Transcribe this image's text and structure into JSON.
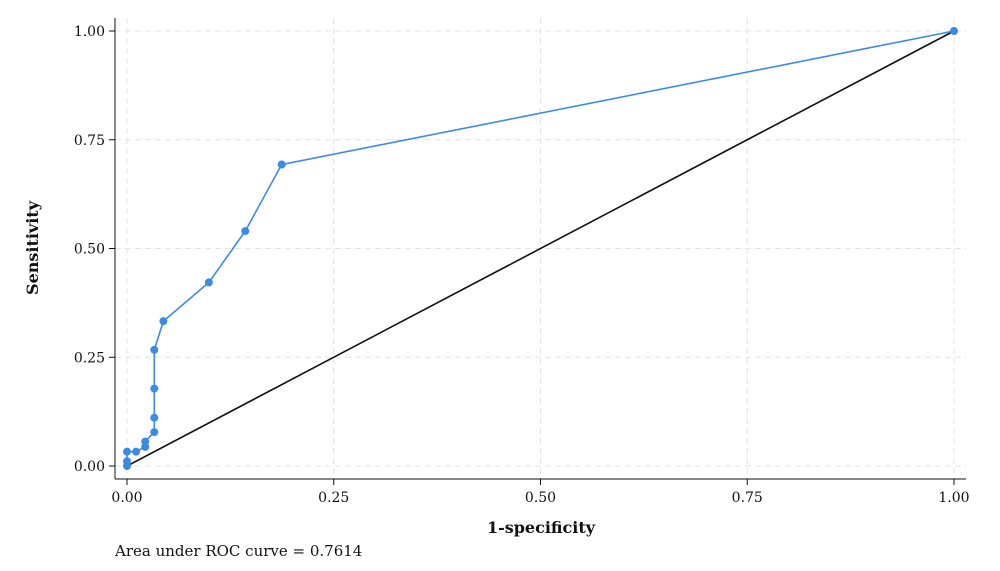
{
  "chart_data": {
    "type": "line",
    "title": "",
    "xlabel": "1-specificity",
    "ylabel": "Sensitivity",
    "xlim": [
      0,
      1
    ],
    "ylim": [
      0,
      1
    ],
    "grid": true,
    "x_ticks": [
      "0.00",
      "0.25",
      "0.50",
      "0.75",
      "1.00"
    ],
    "y_ticks": [
      "0.00",
      "0.25",
      "0.50",
      "0.75",
      "1.00"
    ],
    "series": [
      {
        "color": "#3b8be6",
        "marker": "circle",
        "x": [
          0,
          0,
          0,
          0.011,
          0.022,
          0.022,
          0.033,
          0.033,
          0.033,
          0.033,
          0.044,
          0.099,
          0.143,
          0.187,
          1.0
        ],
        "y": [
          0,
          0.011,
          0.033,
          0.033,
          0.044,
          0.056,
          0.078,
          0.111,
          0.178,
          0.267,
          0.333,
          0.422,
          0.54,
          0.693,
          1.0
        ]
      }
    ],
    "reference_line": {
      "color": "#111111",
      "x": [
        0,
        1
      ],
      "y": [
        0,
        1
      ]
    },
    "annotation": "Area under ROC curve = 0.7614"
  }
}
